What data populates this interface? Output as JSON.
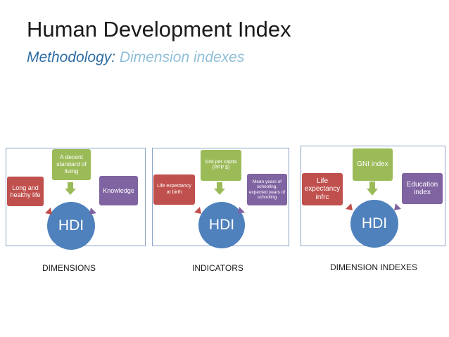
{
  "header": {
    "title": "Human Development Index",
    "subtitle_part1": "Methodology:",
    "subtitle_part2": " Dimension indexes"
  },
  "panels": [
    {
      "caption": "DIMENSIONS",
      "left_box": "Long and healthy life",
      "top_box": "A decent standard of living",
      "right_box": "Knowledge",
      "center": "HDI"
    },
    {
      "caption": "INDICATORS",
      "left_box": "Life expectancy at birth",
      "top_box": "GNI per capita (PPP $)",
      "right_box": "Mean years of schooling, expected years of schooling",
      "center": "HDI"
    },
    {
      "caption": "DIMENSION INDEXES",
      "left_box": "Life expectancy infrc",
      "top_box": "GNI index",
      "right_box": "Education index",
      "center": "HDI"
    }
  ],
  "colors": {
    "left_box": "#c0504d",
    "top_box": "#9bbb59",
    "right_box": "#8064a2",
    "center": "#4f81bd"
  }
}
